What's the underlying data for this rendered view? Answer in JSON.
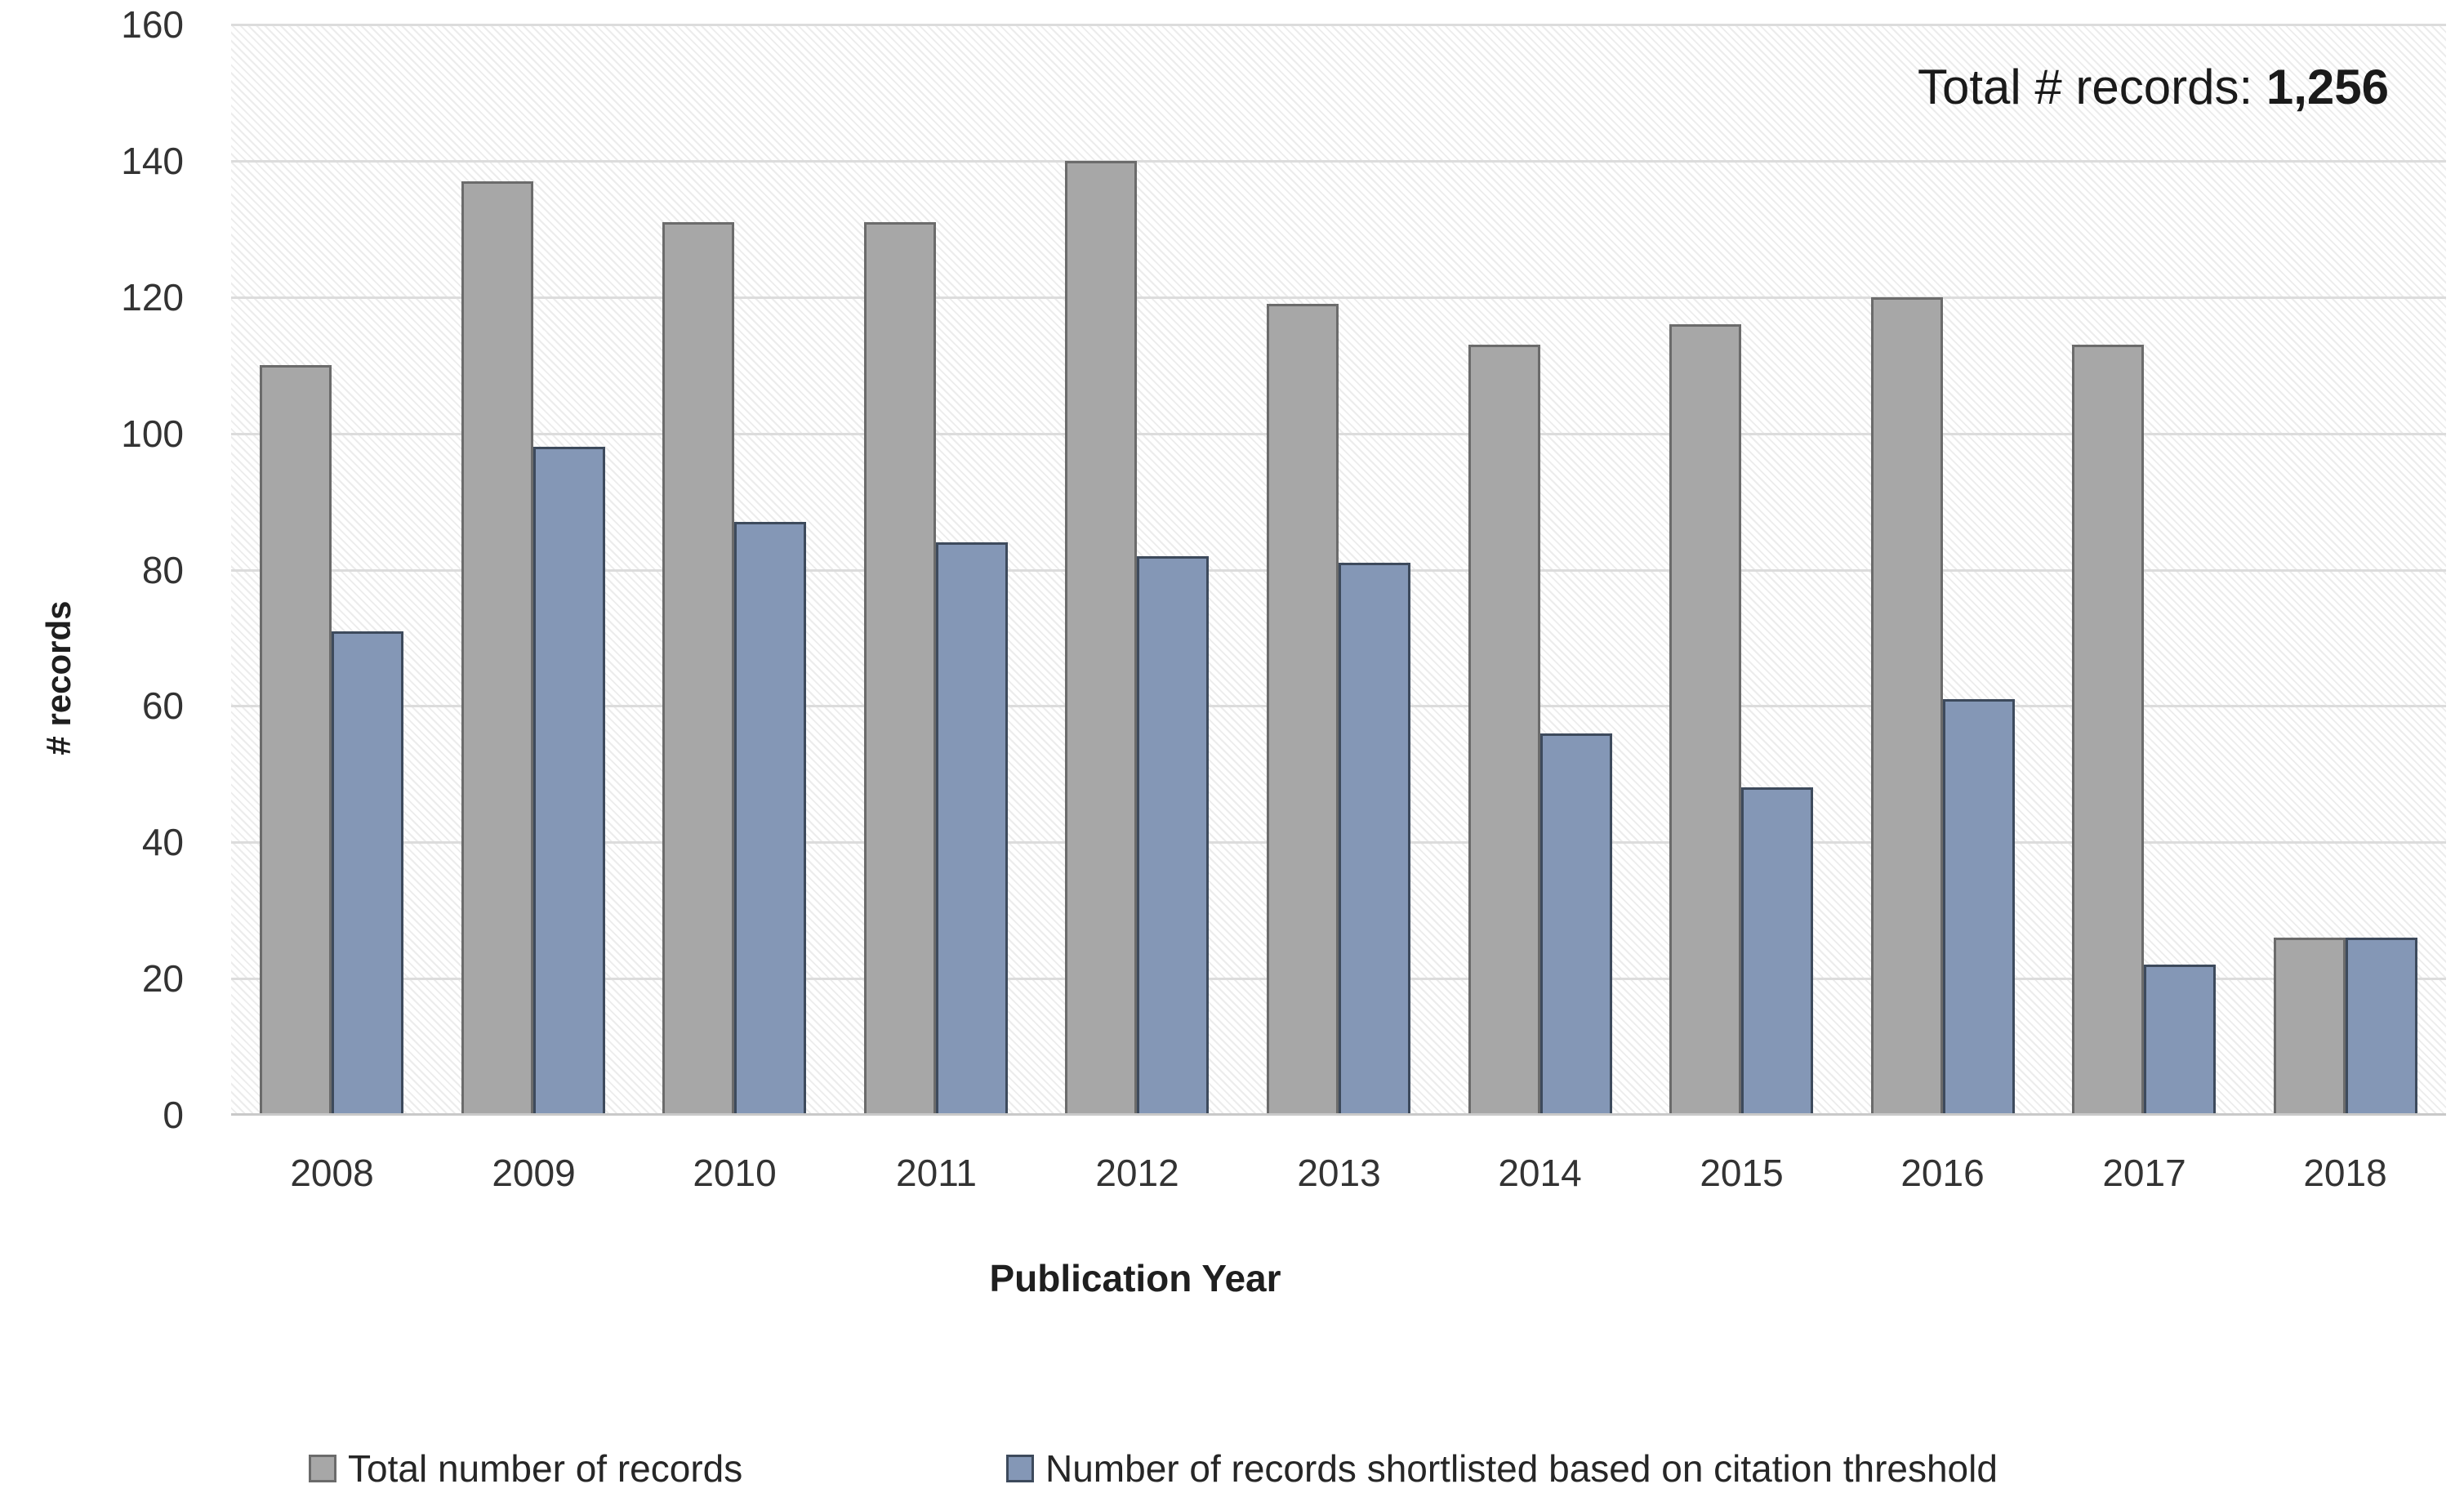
{
  "chart_data": {
    "type": "bar",
    "categories": [
      "2008",
      "2009",
      "2010",
      "2011",
      "2012",
      "2013",
      "2014",
      "2015",
      "2016",
      "2017",
      "2018"
    ],
    "series": [
      {
        "name": "Total number of records",
        "values": [
          110,
          137,
          131,
          131,
          140,
          119,
          113,
          116,
          120,
          113,
          26
        ],
        "fill_color": "#a7a7a7",
        "border_color": "#6b6b6b"
      },
      {
        "name": "Number of records shortlisted based on citation threshold",
        "values": [
          71,
          98,
          87,
          84,
          82,
          81,
          56,
          48,
          61,
          22,
          26
        ],
        "fill_color": "#8497b6",
        "border_color": "#3d4a5c"
      }
    ],
    "title": "",
    "xlabel": "Publication Year",
    "ylabel": "# records",
    "ylim": [
      0,
      160
    ],
    "ytick_step": 20,
    "yticks": [
      0,
      20,
      40,
      60,
      80,
      100,
      120,
      140,
      160
    ],
    "grid": true,
    "legend_position": "bottom"
  },
  "annotation": {
    "label": "Total # records: ",
    "value": "1,256"
  },
  "colors": {
    "gridline": "#dcdcdc",
    "axis_line": "#c9c9c9",
    "tick_text": "#333333",
    "label_text": "#1f1f1f",
    "plot_hatch_line": "#ececec",
    "background": "#ffffff"
  }
}
